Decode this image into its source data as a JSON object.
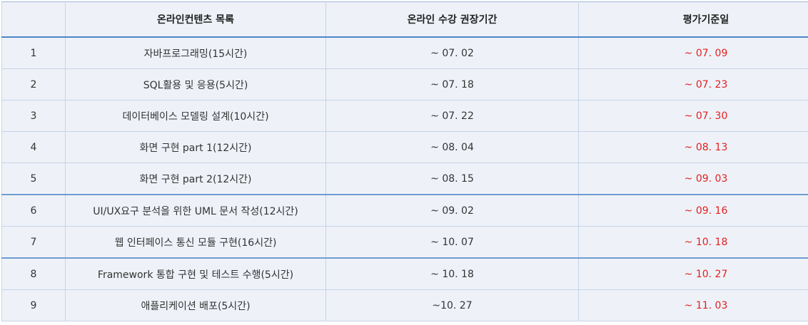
{
  "table": {
    "headers": {
      "no": "",
      "title": "온라인컨텐츠 목록",
      "online_period": "온라인 수강 권장기간",
      "eval_date": "평가기준일"
    },
    "rows": [
      {
        "no": "1",
        "title": "자바프로그래밍(15시간)",
        "online": "~ 07. 02",
        "eval": "~ 07. 09"
      },
      {
        "no": "2",
        "title": "SQL활용 및 응용(5시간)",
        "online": "~ 07. 18",
        "eval": "~ 07. 23"
      },
      {
        "no": "3",
        "title": "데이터베이스 모델링 설계(10시간)",
        "online": "~ 07. 22",
        "eval": "~ 07. 30"
      },
      {
        "no": "4",
        "title": "화면 구현 part 1(12시간)",
        "online": "~ 08. 04",
        "eval": "~ 08. 13"
      },
      {
        "no": "5",
        "title": "화면 구현 part 2(12시간)",
        "online": "~ 08. 15",
        "eval": "~ 09. 03"
      },
      {
        "no": "6",
        "title": "UI/UX요구 분석을 위한 UML 문서 작성(12시간)",
        "online": "~ 09. 02",
        "eval": "~ 09. 16"
      },
      {
        "no": "7",
        "title": "웹 인터페이스 통신 모듈 구현(16시간)",
        "online": "~ 10. 07",
        "eval": "~ 10. 18"
      },
      {
        "no": "8",
        "title": "Framework 통합 구현 및 테스트 수행(5시간)",
        "online": "~ 10. 18",
        "eval": "~ 10. 27"
      },
      {
        "no": "9",
        "title": "애플리케이션 배포(5시간)",
        "online": "~10. 27",
        "eval": "~ 11. 03"
      }
    ],
    "colors": {
      "eval_text": "#e02020",
      "header_rule": "#4a86c8",
      "cell_background": "#eef2f8"
    }
  }
}
